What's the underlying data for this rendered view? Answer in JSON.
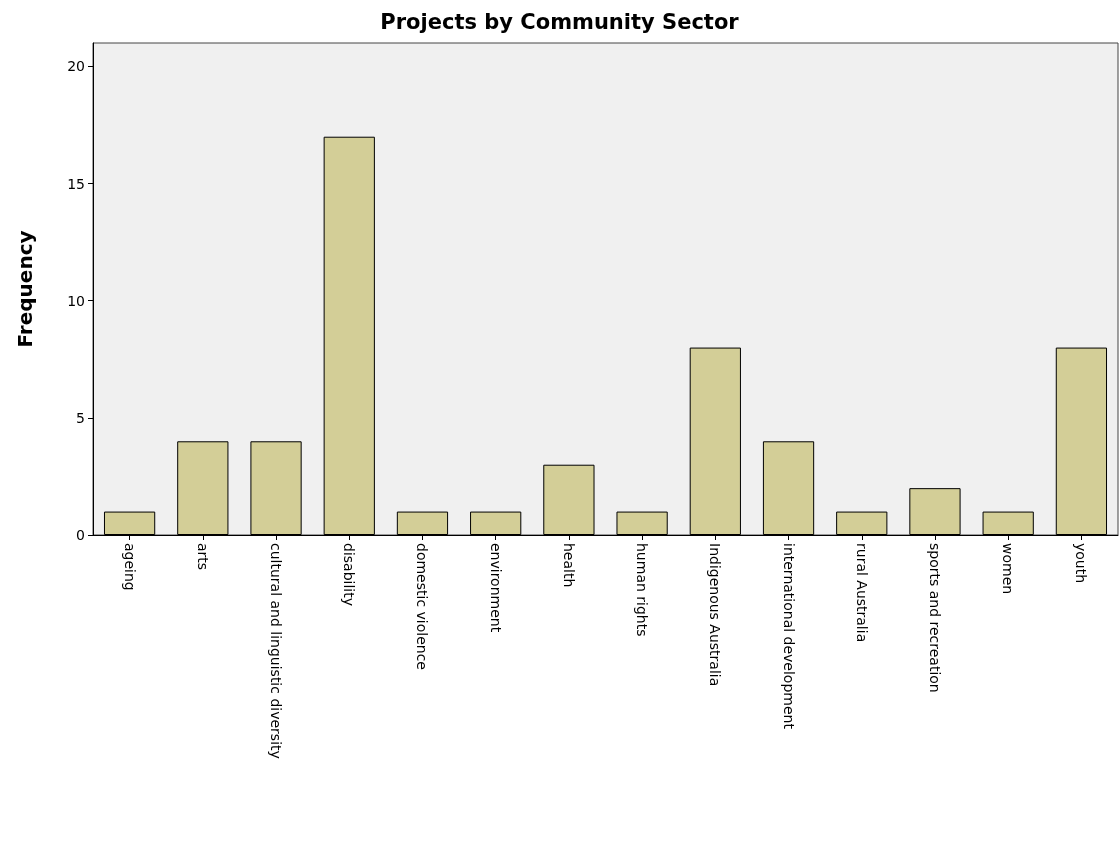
{
  "chart_data": {
    "type": "bar",
    "title": "Projects by Community Sector",
    "ylabel": "Frequency",
    "categories": [
      "ageing",
      "arts",
      "cultural and linguistic diversity",
      "disability",
      "domestic violence",
      "environment",
      "health",
      "human rights",
      "Indigenous Australia",
      "international development",
      "rural Australia",
      "sports and recreation",
      "women",
      "youth"
    ],
    "values": [
      1,
      4,
      4,
      17,
      1,
      1,
      3,
      1,
      8,
      4,
      1,
      2,
      1,
      8
    ],
    "color": "#d3ce97",
    "ylim": [
      0,
      21
    ],
    "yticks": [
      0,
      5,
      10,
      15,
      20
    ],
    "grid": false
  }
}
